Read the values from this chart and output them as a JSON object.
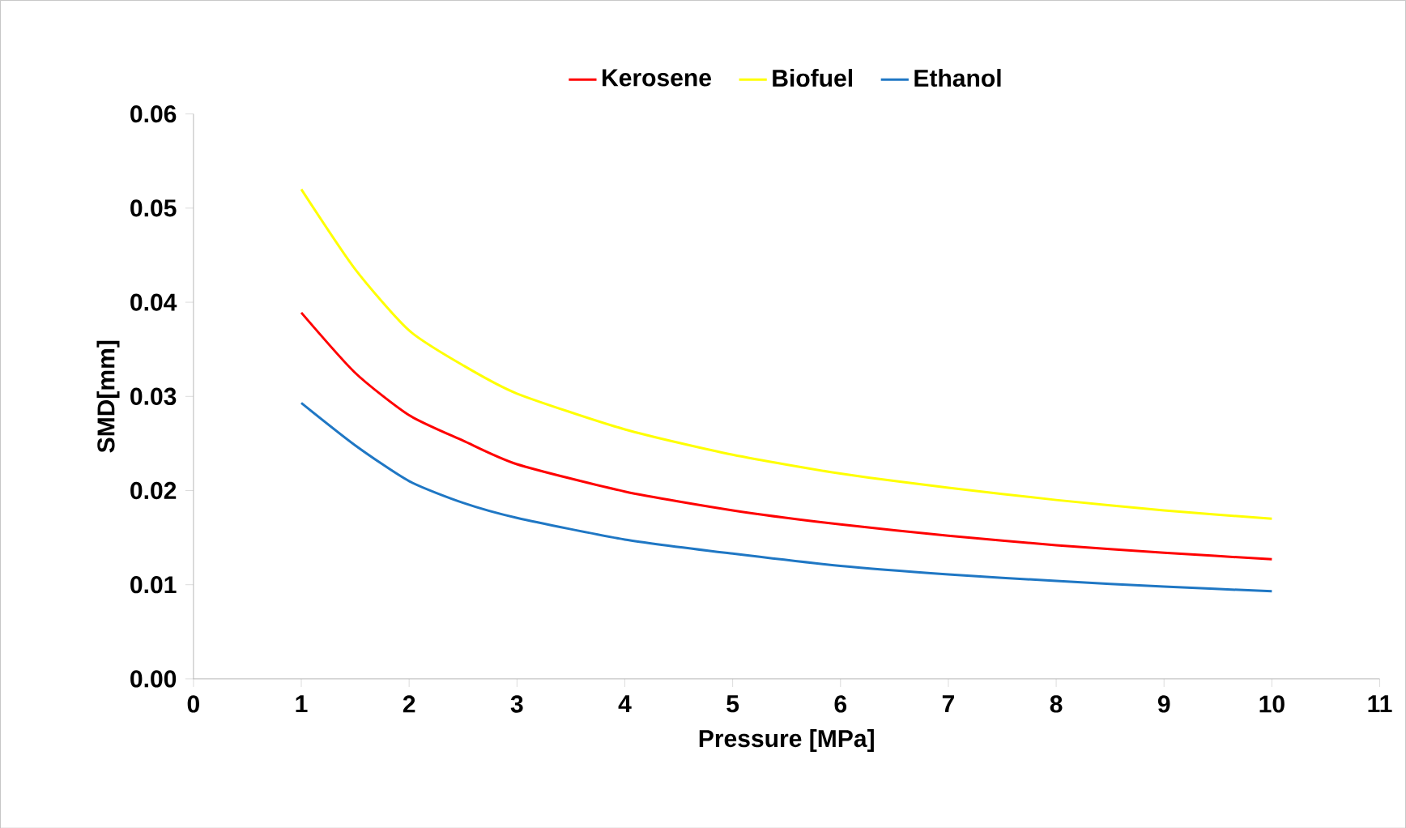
{
  "chart_data": {
    "type": "line",
    "xlabel": "Pressure [MPa]",
    "ylabel": "SMD[mm]",
    "x": [
      1,
      1.5,
      2,
      2.5,
      3,
      4,
      5,
      6,
      7,
      8,
      9,
      10
    ],
    "series": [
      {
        "name": "Kerosene",
        "color": "#ff0000",
        "values": [
          0.0389,
          0.0325,
          0.028,
          0.0253,
          0.0228,
          0.0199,
          0.0179,
          0.0164,
          0.0152,
          0.0142,
          0.0134,
          0.0127
        ]
      },
      {
        "name": "Biofuel",
        "color": "#ffff00",
        "values": [
          0.052,
          0.0435,
          0.037,
          0.0333,
          0.0303,
          0.0265,
          0.0238,
          0.0218,
          0.0203,
          0.019,
          0.0179,
          0.017
        ]
      },
      {
        "name": "Ethanol",
        "color": "#1f77c4",
        "values": [
          0.0293,
          0.0248,
          0.021,
          0.0187,
          0.0171,
          0.0148,
          0.0133,
          0.012,
          0.0111,
          0.0104,
          0.0098,
          0.0093
        ]
      }
    ],
    "xlim": [
      0,
      11
    ],
    "xticks": [
      0,
      1,
      2,
      3,
      4,
      5,
      6,
      7,
      8,
      9,
      10,
      11
    ],
    "ylim": [
      0,
      0.06
    ],
    "yticks": [
      {
        "value": 0,
        "label": "0.00"
      },
      {
        "value": 0.01,
        "label": "0.01"
      },
      {
        "value": 0.02,
        "label": "0.02"
      },
      {
        "value": 0.03,
        "label": "0.03"
      },
      {
        "value": 0.04,
        "label": "0.04"
      },
      {
        "value": 0.05,
        "label": "0.05"
      },
      {
        "value": 0.06,
        "label": "0.06"
      }
    ],
    "grid": false,
    "legend": "top",
    "marker": "none",
    "line_style": "solid"
  }
}
